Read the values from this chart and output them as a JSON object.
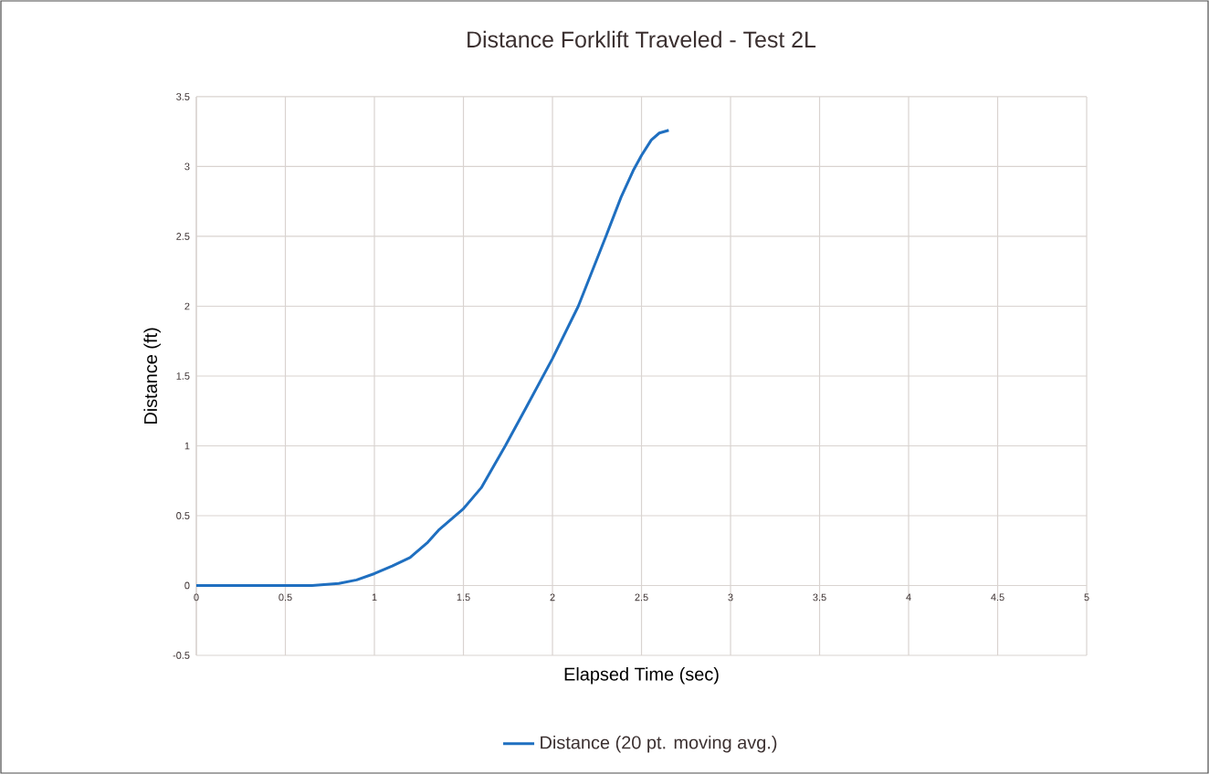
{
  "chart_data": {
    "type": "line",
    "title": "Distance Forklift Traveled - Test 2L",
    "xlabel": "Elapsed Time (sec)",
    "ylabel": "Distance (ft)",
    "xlim": [
      0,
      5
    ],
    "ylim": [
      -0.5,
      3.5
    ],
    "xticks": [
      0,
      0.5,
      1,
      1.5,
      2,
      2.5,
      3,
      3.5,
      4,
      4.5,
      5
    ],
    "yticks": [
      -0.5,
      0,
      0.5,
      1,
      1.5,
      2,
      2.5,
      3,
      3.5
    ],
    "grid": true,
    "legend": "bottom",
    "series": [
      {
        "name": "Distance (20 pt. moving avg.)",
        "color": "#1f6fc0",
        "x": [
          0,
          0.25,
          0.5,
          0.65,
          0.8,
          0.9,
          1.0,
          1.1,
          1.2,
          1.3,
          1.36,
          1.5,
          1.6,
          1.735,
          1.85,
          2.0,
          2.145,
          2.3,
          2.385,
          2.453,
          2.5,
          2.555,
          2.6,
          2.653
        ],
        "values": [
          0,
          0,
          0,
          0,
          0.015,
          0.04,
          0.085,
          0.14,
          0.2,
          0.31,
          0.396,
          0.55,
          0.7,
          1.0,
          1.27,
          1.625,
          2.0,
          2.5,
          2.78,
          2.97,
          3.08,
          3.19,
          3.24,
          3.26
        ]
      }
    ]
  }
}
